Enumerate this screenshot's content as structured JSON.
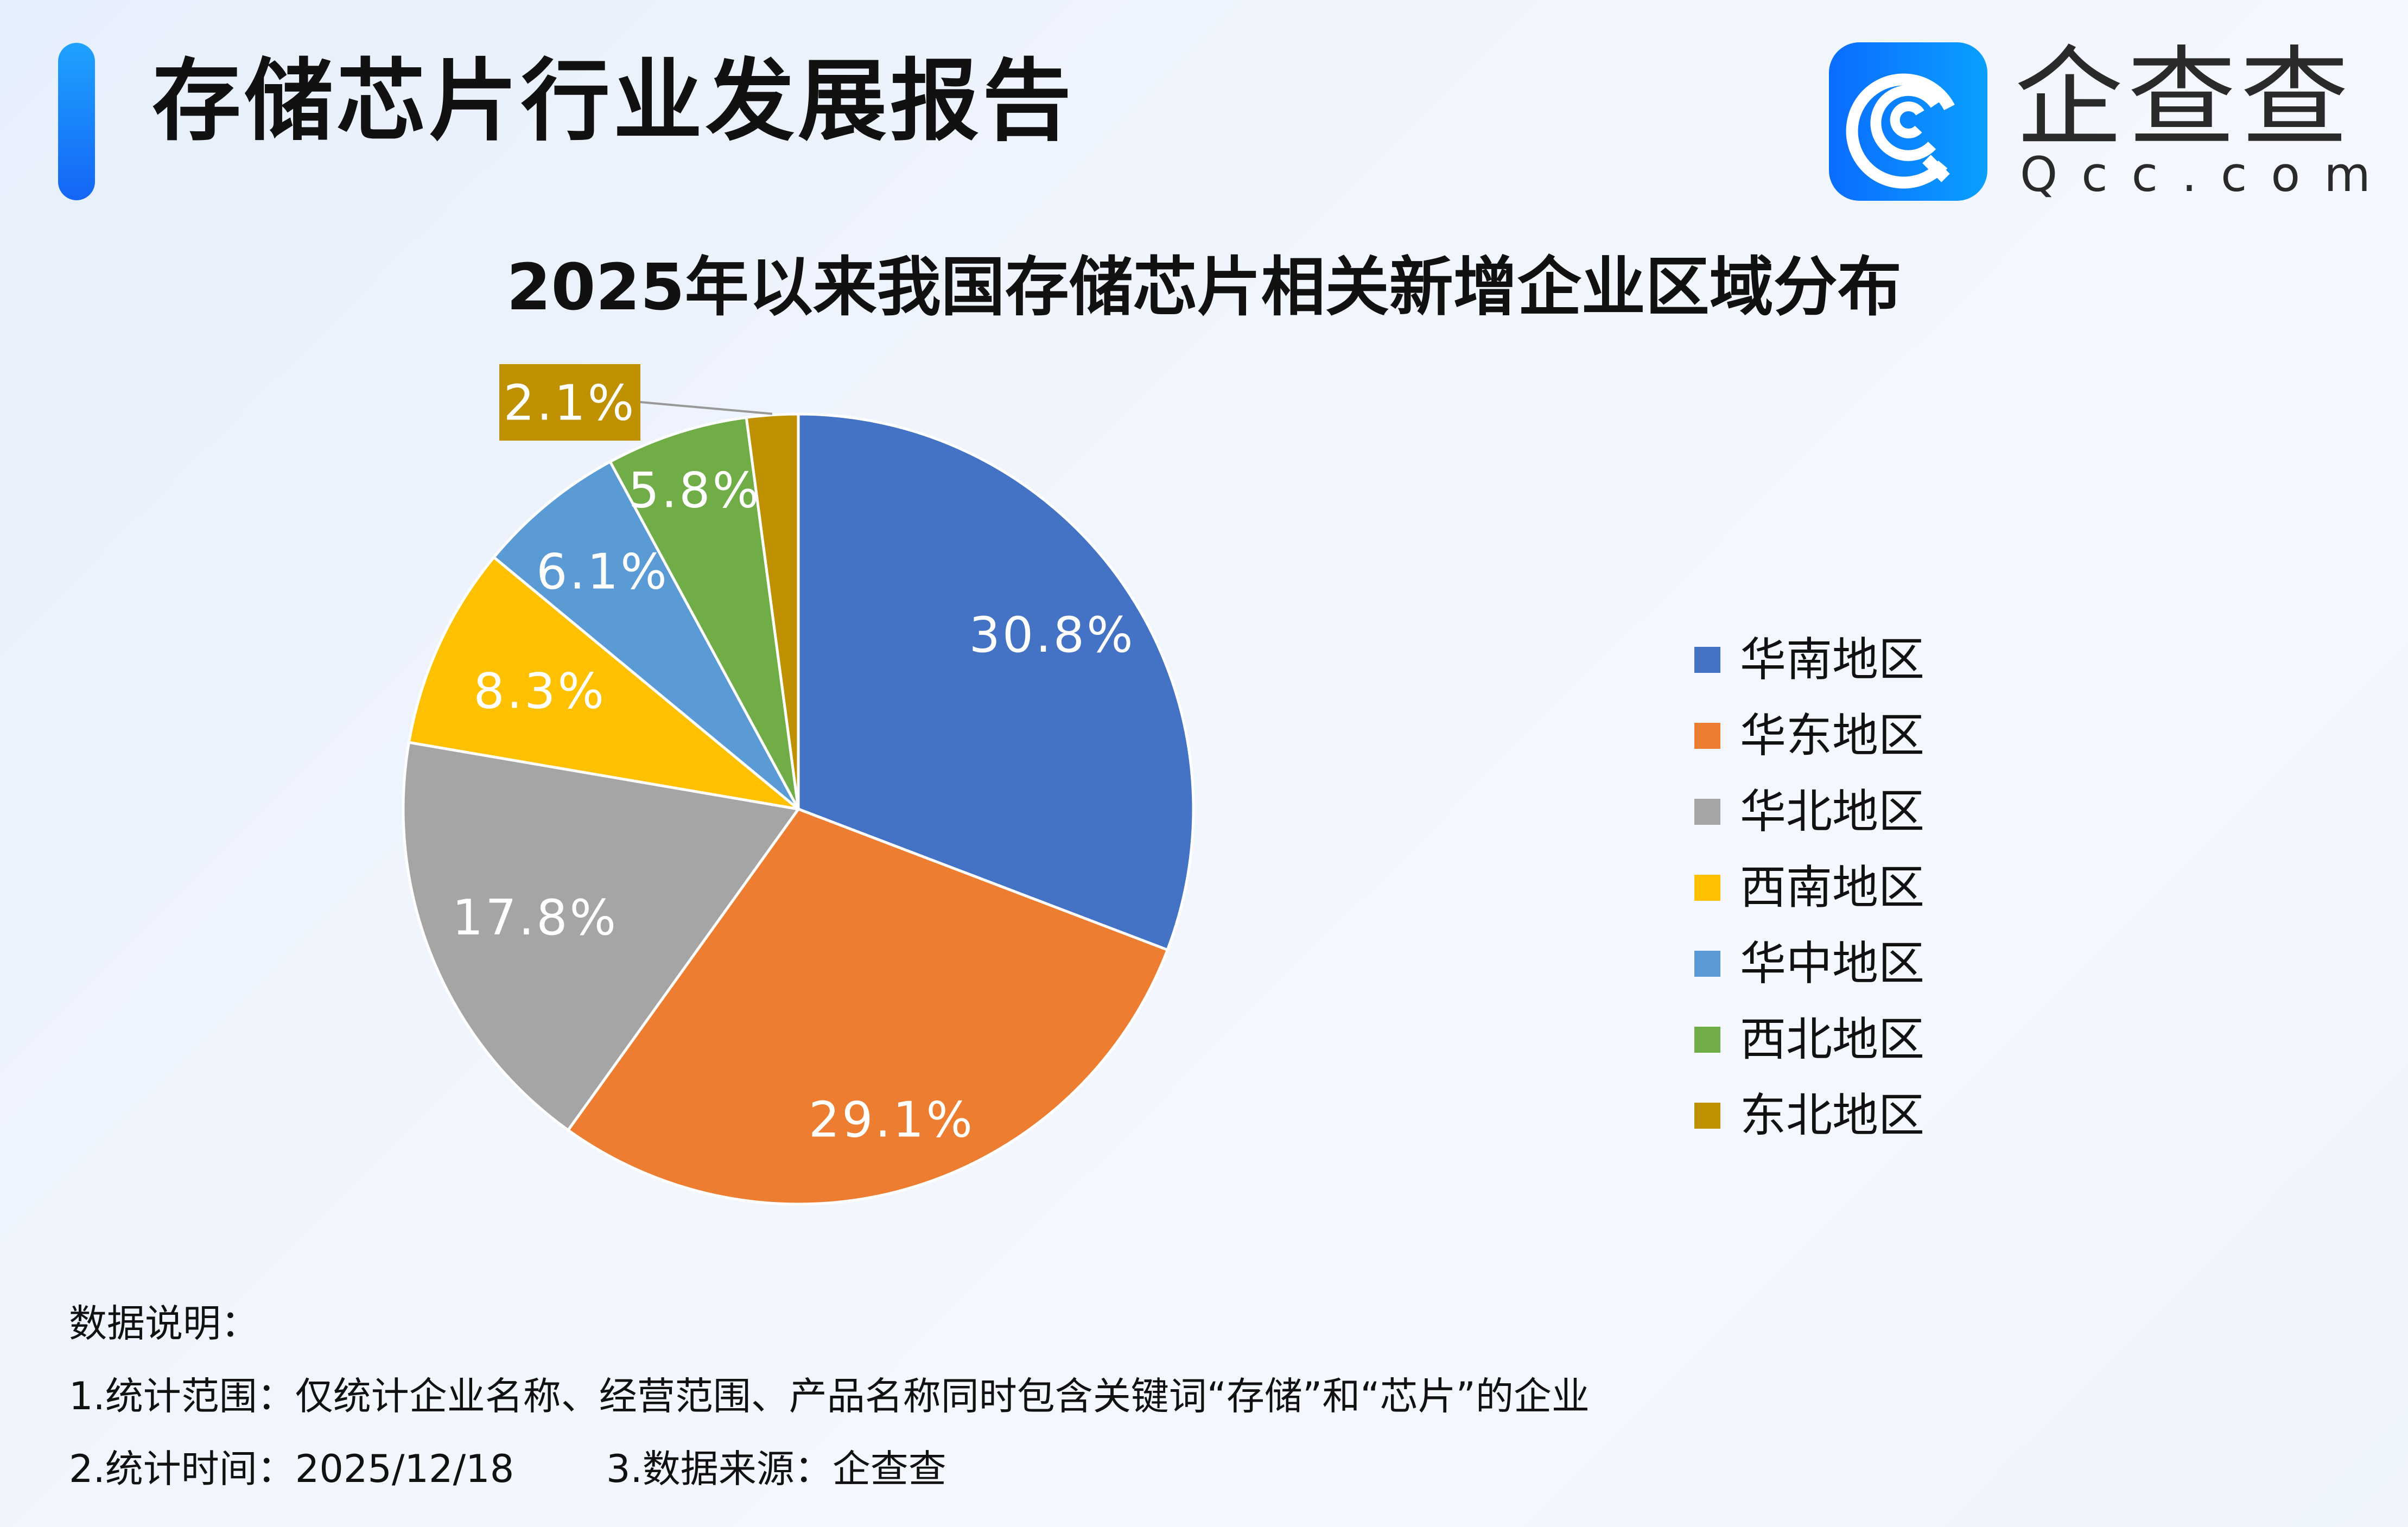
{
  "header": {
    "title": "存储芯片行业发展报告"
  },
  "logo": {
    "name": "企查查",
    "domain": "Qcc.com"
  },
  "chart_data": {
    "type": "pie",
    "title": "2025年以来我国存储芯片相关新增企业区域分布",
    "categories": [
      "华南地区",
      "华东地区",
      "华北地区",
      "西南地区",
      "华中地区",
      "西北地区",
      "东北地区"
    ],
    "values": [
      30.8,
      29.1,
      17.8,
      8.3,
      6.1,
      5.8,
      2.1
    ],
    "labels": [
      "30.8%",
      "29.1%",
      "17.8%",
      "8.3%",
      "6.1%",
      "5.8%",
      "2.1%"
    ],
    "colors": [
      "#4472c4",
      "#ed7d31",
      "#a5a5a5",
      "#ffc000",
      "#5b9bd5",
      "#70ad47",
      "#bf9000"
    ],
    "start": "12 o'clock, clockwise",
    "legend_position": "right"
  },
  "footer": {
    "heading": "数据说明：",
    "line1": "1.统计范围：仅统计企业名称、经营范围、产品名称同时包含关键词“存储”和“芯片”的企业",
    "line2a": "2.统计时间：2025/12/18",
    "line2b": "3.数据来源：企查查"
  }
}
